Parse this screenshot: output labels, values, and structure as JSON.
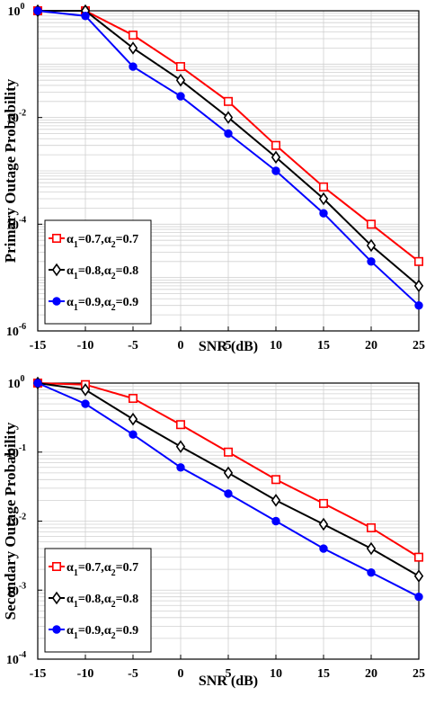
{
  "chart_data": [
    {
      "type": "line",
      "ylabel": "Primary Outage Probability",
      "xlabel": "SNR (dB)",
      "yscale": "log",
      "ylim": [
        1e-06,
        1
      ],
      "xlim": [
        -15,
        25
      ],
      "x": [
        -15,
        -10,
        -5,
        0,
        5,
        10,
        15,
        20,
        25
      ],
      "x_tick_labels": [
        "-15",
        "-10",
        "-5",
        "0",
        "5",
        "10",
        "15",
        "20",
        "25"
      ],
      "y_ticks": [
        {
          "base": "10",
          "exp": "0",
          "value": 1
        },
        {
          "base": "10",
          "exp": "-2",
          "value": 0.01
        },
        {
          "base": "10",
          "exp": "-4",
          "value": 0.0001
        },
        {
          "base": "10",
          "exp": "-6",
          "value": 1e-06
        }
      ],
      "grid": true,
      "legend_position": "bottom-left",
      "series": [
        {
          "name": "α1=0.7,α2=0.7",
          "label": {
            "a": "α",
            "s1": "1",
            "eq1": "=0.7,",
            "b": "α",
            "s2": "2",
            "eq2": "=0.7"
          },
          "color": "#ff0000",
          "marker": "square",
          "values": [
            1,
            1,
            0.35,
            0.09,
            0.02,
            0.003,
            0.0005,
            0.0001,
            2e-05
          ]
        },
        {
          "name": "α1=0.8,α2=0.8",
          "label": {
            "a": "α",
            "s1": "1",
            "eq1": "=0.8,",
            "b": "α",
            "s2": "2",
            "eq2": "=0.8"
          },
          "color": "#000000",
          "marker": "diamond",
          "values": [
            1,
            1,
            0.2,
            0.05,
            0.01,
            0.0018,
            0.0003,
            4e-05,
            7e-06
          ]
        },
        {
          "name": "α1=0.9,α2=0.9",
          "label": {
            "a": "α",
            "s1": "1",
            "eq1": "=0.9,",
            "b": "α",
            "s2": "2",
            "eq2": "=0.9"
          },
          "color": "#0000ff",
          "marker": "circle",
          "values": [
            1,
            0.8,
            0.09,
            0.025,
            0.005,
            0.001,
            0.00016,
            2e-05,
            3e-06
          ]
        }
      ]
    },
    {
      "type": "line",
      "ylabel": "Secondary Outage Probability",
      "xlabel": "SNR (dB)",
      "yscale": "log",
      "ylim": [
        0.0001,
        1
      ],
      "xlim": [
        -15,
        25
      ],
      "x": [
        -15,
        -10,
        -5,
        0,
        5,
        10,
        15,
        20,
        25
      ],
      "x_tick_labels": [
        "-15",
        "-10",
        "-5",
        "0",
        "5",
        "10",
        "15",
        "20",
        "25"
      ],
      "y_ticks": [
        {
          "base": "10",
          "exp": "0",
          "value": 1
        },
        {
          "base": "10",
          "exp": "-1",
          "value": 0.1
        },
        {
          "base": "10",
          "exp": "-2",
          "value": 0.01
        },
        {
          "base": "10",
          "exp": "-3",
          "value": 0.001
        },
        {
          "base": "10",
          "exp": "-4",
          "value": 0.0001
        }
      ],
      "grid": true,
      "legend_position": "bottom-left",
      "series": [
        {
          "name": "α1=0.7,α2=0.7",
          "label": {
            "a": "α",
            "s1": "1",
            "eq1": "=0.7,",
            "b": "α",
            "s2": "2",
            "eq2": "=0.7"
          },
          "color": "#ff0000",
          "marker": "square",
          "values": [
            1,
            0.95,
            0.6,
            0.25,
            0.1,
            0.04,
            0.018,
            0.008,
            0.003
          ]
        },
        {
          "name": "α1=0.8,α2=0.8",
          "label": {
            "a": "α",
            "s1": "1",
            "eq1": "=0.8,",
            "b": "α",
            "s2": "2",
            "eq2": "=0.8"
          },
          "color": "#000000",
          "marker": "diamond",
          "values": [
            1,
            0.8,
            0.3,
            0.12,
            0.05,
            0.02,
            0.009,
            0.004,
            0.0016
          ]
        },
        {
          "name": "α1=0.9,α2=0.9",
          "label": {
            "a": "α",
            "s1": "1",
            "eq1": "=0.9,",
            "b": "α",
            "s2": "2",
            "eq2": "=0.9"
          },
          "color": "#0000ff",
          "marker": "circle",
          "values": [
            1,
            0.5,
            0.18,
            0.06,
            0.025,
            0.01,
            0.004,
            0.0018,
            0.0008
          ]
        }
      ]
    }
  ]
}
